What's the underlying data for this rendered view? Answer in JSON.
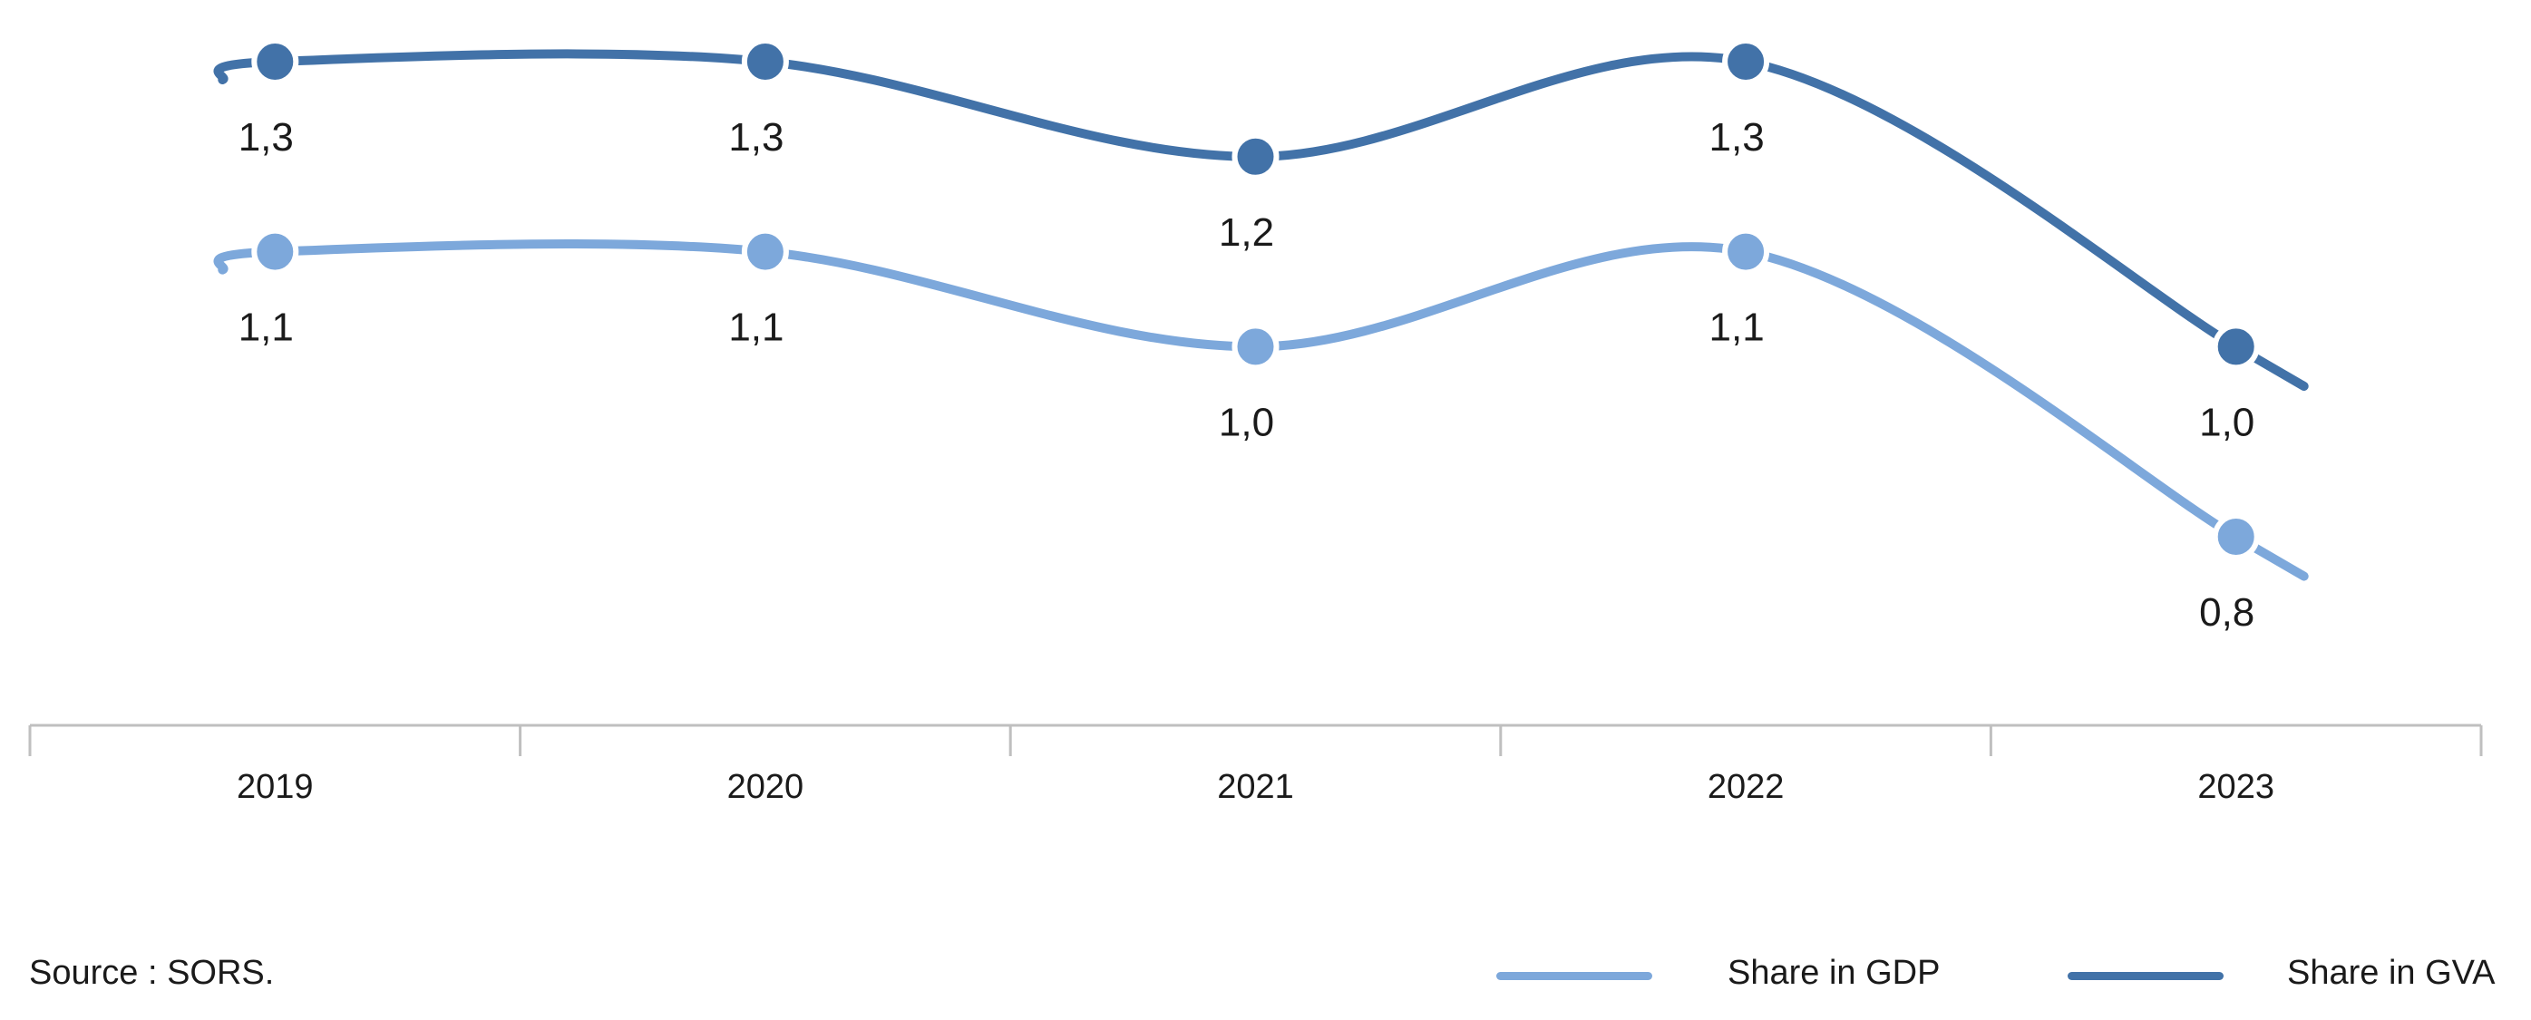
{
  "chart_data": {
    "type": "line",
    "categories": [
      "2019",
      "2020",
      "2021",
      "2022",
      "2023"
    ],
    "series": [
      {
        "name": "Share in GVA",
        "values": [
          1.3,
          1.3,
          1.2,
          1.3,
          1.0
        ],
        "labels": [
          "1,3",
          "1,3",
          "1,2",
          "1,3",
          "1,0"
        ],
        "color": "#4272a8"
      },
      {
        "name": "Share in GDP",
        "values": [
          1.1,
          1.1,
          1.0,
          1.1,
          0.8
        ],
        "labels": [
          "1,1",
          "1,1",
          "1,0",
          "1,1",
          "0,8"
        ],
        "color": "#7da8db"
      }
    ],
    "grid": false,
    "smooth": true,
    "legend_position": "bottom-right"
  },
  "source": "Source : SORS.",
  "legend": [
    {
      "label": "Share in GDP",
      "color": "#7da8db"
    },
    {
      "label": "Share in GVA",
      "color": "#4272a8"
    }
  ]
}
